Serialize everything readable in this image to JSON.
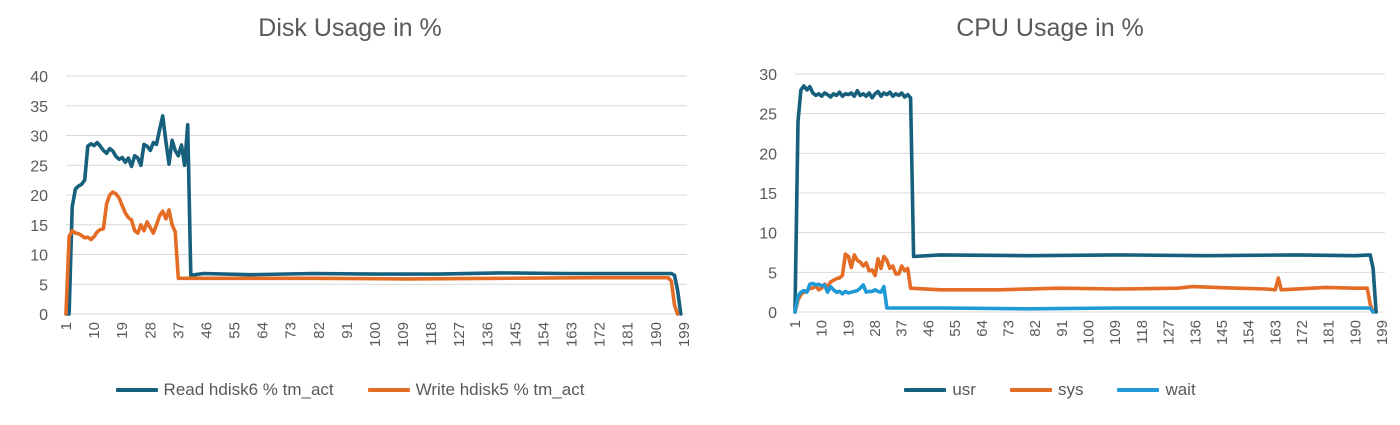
{
  "chart_data": [
    {
      "type": "line",
      "title": "Disk Usage in %",
      "xlabel": "",
      "ylabel": "",
      "ylim": [
        0,
        40
      ],
      "yticks": [
        0,
        5,
        10,
        15,
        20,
        25,
        30,
        35,
        40
      ],
      "x_tick_labels": [
        1,
        10,
        19,
        28,
        37,
        46,
        55,
        64,
        73,
        82,
        91,
        100,
        109,
        118,
        127,
        136,
        145,
        154,
        163,
        172,
        181,
        190,
        199
      ],
      "x_count": 200,
      "grid": true,
      "legend_position": "bottom",
      "series": [
        {
          "name": "Read hdisk6 % tm_act",
          "color": "#17607d",
          "points": [
            [
              1,
              0
            ],
            [
              2,
              0
            ],
            [
              3,
              18
            ],
            [
              4,
              21
            ],
            [
              5,
              21.5
            ],
            [
              6,
              21.8
            ],
            [
              7,
              22.5
            ],
            [
              8,
              28.2
            ],
            [
              9,
              28.6
            ],
            [
              10,
              28.3
            ],
            [
              11,
              28.8
            ],
            [
              12,
              28.2
            ],
            [
              13,
              27.5
            ],
            [
              14,
              27.0
            ],
            [
              15,
              27.8
            ],
            [
              16,
              27.4
            ],
            [
              17,
              26.5
            ],
            [
              18,
              26.0
            ],
            [
              19,
              26.3
            ],
            [
              20,
              25.5
            ],
            [
              21,
              26.2
            ],
            [
              22,
              24.8
            ],
            [
              23,
              26.6
            ],
            [
              24,
              26.2
            ],
            [
              25,
              25.0
            ],
            [
              26,
              28.5
            ],
            [
              27,
              28.2
            ],
            [
              28,
              27.5
            ],
            [
              29,
              28.8
            ],
            [
              30,
              28.5
            ],
            [
              31,
              31.0
            ],
            [
              32,
              33.3
            ],
            [
              33,
              29.0
            ],
            [
              34,
              25.2
            ],
            [
              35,
              29.2
            ],
            [
              36,
              27.5
            ],
            [
              37,
              26.6
            ],
            [
              38,
              28.4
            ],
            [
              39,
              25.0
            ],
            [
              40,
              31.8
            ],
            [
              41,
              6.5
            ],
            [
              45,
              6.8
            ],
            [
              60,
              6.6
            ],
            [
              80,
              6.8
            ],
            [
              100,
              6.7
            ],
            [
              120,
              6.7
            ],
            [
              140,
              6.9
            ],
            [
              160,
              6.8
            ],
            [
              180,
              6.8
            ],
            [
              195,
              6.8
            ],
            [
              196,
              6.5
            ],
            [
              197,
              4.0
            ],
            [
              198,
              0
            ]
          ]
        },
        {
          "name": "Write hdisk5 % tm_act",
          "color": "#e46c25",
          "points": [
            [
              1,
              0
            ],
            [
              2,
              13.0
            ],
            [
              3,
              14.0
            ],
            [
              4,
              13.6
            ],
            [
              5,
              13.5
            ],
            [
              6,
              13.2
            ],
            [
              7,
              12.8
            ],
            [
              8,
              12.9
            ],
            [
              9,
              12.5
            ],
            [
              10,
              13.0
            ],
            [
              11,
              13.8
            ],
            [
              12,
              14.2
            ],
            [
              13,
              14.3
            ],
            [
              14,
              18.5
            ],
            [
              15,
              20.0
            ],
            [
              16,
              20.5
            ],
            [
              17,
              20.2
            ],
            [
              18,
              19.5
            ],
            [
              19,
              18.2
            ],
            [
              20,
              17.0
            ],
            [
              21,
              16.2
            ],
            [
              22,
              15.8
            ],
            [
              23,
              14.0
            ],
            [
              24,
              13.6
            ],
            [
              25,
              15.0
            ],
            [
              26,
              14.0
            ],
            [
              27,
              15.5
            ],
            [
              28,
              14.5
            ],
            [
              29,
              13.6
            ],
            [
              30,
              15.0
            ],
            [
              31,
              16.5
            ],
            [
              32,
              17.3
            ],
            [
              33,
              16.0
            ],
            [
              34,
              17.5
            ],
            [
              35,
              15.0
            ],
            [
              36,
              13.8
            ],
            [
              37,
              6.0
            ],
            [
              50,
              6.0
            ],
            [
              80,
              6.0
            ],
            [
              110,
              5.9
            ],
            [
              140,
              6.0
            ],
            [
              170,
              6.1
            ],
            [
              194,
              6.1
            ],
            [
              195,
              5.5
            ],
            [
              196,
              1.5
            ],
            [
              197,
              0
            ]
          ]
        }
      ]
    },
    {
      "type": "line",
      "title": "CPU Usage in %",
      "xlabel": "",
      "ylabel": "",
      "ylim": [
        0,
        30
      ],
      "yticks": [
        0,
        5,
        10,
        15,
        20,
        25,
        30
      ],
      "x_tick_labels": [
        1,
        10,
        19,
        28,
        37,
        46,
        55,
        64,
        73,
        82,
        91,
        100,
        109,
        118,
        127,
        136,
        145,
        154,
        163,
        172,
        181,
        190,
        199
      ],
      "x_count": 200,
      "grid": true,
      "legend_position": "bottom",
      "series": [
        {
          "name": "usr",
          "color": "#17607d",
          "points": [
            [
              1,
              0
            ],
            [
              2,
              24
            ],
            [
              3,
              28
            ],
            [
              4,
              28.5
            ],
            [
              5,
              28.0
            ],
            [
              6,
              28.4
            ],
            [
              7,
              27.6
            ],
            [
              8,
              27.3
            ],
            [
              9,
              27.5
            ],
            [
              10,
              27.2
            ],
            [
              11,
              27.6
            ],
            [
              12,
              27.4
            ],
            [
              13,
              27.1
            ],
            [
              14,
              27.5
            ],
            [
              15,
              27.3
            ],
            [
              16,
              27.7
            ],
            [
              17,
              27.2
            ],
            [
              18,
              27.5
            ],
            [
              19,
              27.4
            ],
            [
              20,
              27.6
            ],
            [
              21,
              27.2
            ],
            [
              22,
              27.9
            ],
            [
              23,
              27.3
            ],
            [
              24,
              27.5
            ],
            [
              25,
              27.2
            ],
            [
              26,
              27.6
            ],
            [
              27,
              27.0
            ],
            [
              28,
              27.5
            ],
            [
              29,
              27.8
            ],
            [
              30,
              27.2
            ],
            [
              31,
              27.6
            ],
            [
              32,
              27.4
            ],
            [
              33,
              27.7
            ],
            [
              34,
              27.2
            ],
            [
              35,
              27.5
            ],
            [
              36,
              27.3
            ],
            [
              37,
              27.6
            ],
            [
              38,
              27.1
            ],
            [
              39,
              27.4
            ],
            [
              40,
              27.0
            ],
            [
              41,
              7.0
            ],
            [
              50,
              7.2
            ],
            [
              80,
              7.1
            ],
            [
              110,
              7.2
            ],
            [
              140,
              7.1
            ],
            [
              170,
              7.2
            ],
            [
              190,
              7.1
            ],
            [
              195,
              7.2
            ],
            [
              196,
              5.5
            ],
            [
              197,
              0
            ]
          ]
        },
        {
          "name": "sys",
          "color": "#e46c25",
          "points": [
            [
              1,
              0
            ],
            [
              2,
              1.5
            ],
            [
              3,
              2.2
            ],
            [
              4,
              2.5
            ],
            [
              5,
              2.6
            ],
            [
              6,
              3.0
            ],
            [
              7,
              3.0
            ],
            [
              8,
              3.3
            ],
            [
              9,
              2.8
            ],
            [
              10,
              3.0
            ],
            [
              11,
              3.5
            ],
            [
              12,
              3.2
            ],
            [
              13,
              3.8
            ],
            [
              14,
              4.0
            ],
            [
              15,
              4.2
            ],
            [
              16,
              4.3
            ],
            [
              17,
              4.6
            ],
            [
              18,
              7.3
            ],
            [
              19,
              7.0
            ],
            [
              20,
              5.6
            ],
            [
              21,
              7.2
            ],
            [
              22,
              6.5
            ],
            [
              23,
              6.3
            ],
            [
              24,
              5.8
            ],
            [
              25,
              6.2
            ],
            [
              26,
              5.2
            ],
            [
              27,
              5.3
            ],
            [
              28,
              4.6
            ],
            [
              29,
              6.7
            ],
            [
              30,
              5.5
            ],
            [
              31,
              7.0
            ],
            [
              32,
              6.5
            ],
            [
              33,
              5.5
            ],
            [
              34,
              5.8
            ],
            [
              35,
              4.8
            ],
            [
              36,
              4.8
            ],
            [
              37,
              5.8
            ],
            [
              38,
              5.2
            ],
            [
              39,
              5.5
            ],
            [
              40,
              3.0
            ],
            [
              50,
              2.8
            ],
            [
              70,
              2.8
            ],
            [
              90,
              3.0
            ],
            [
              110,
              2.9
            ],
            [
              130,
              3.0
            ],
            [
              135,
              3.2
            ],
            [
              150,
              3.0
            ],
            [
              160,
              2.9
            ],
            [
              163,
              2.8
            ],
            [
              164,
              4.3
            ],
            [
              165,
              2.8
            ],
            [
              180,
              3.1
            ],
            [
              190,
              3.0
            ],
            [
              194,
              3.0
            ],
            [
              195,
              1.0
            ],
            [
              196,
              0
            ]
          ]
        },
        {
          "name": "wait",
          "color": "#1f9ad6",
          "points": [
            [
              1,
              0
            ],
            [
              2,
              2.0
            ],
            [
              3,
              2.5
            ],
            [
              4,
              2.7
            ],
            [
              5,
              2.5
            ],
            [
              6,
              3.5
            ],
            [
              7,
              3.6
            ],
            [
              8,
              3.4
            ],
            [
              9,
              3.5
            ],
            [
              10,
              3.3
            ],
            [
              11,
              3.4
            ],
            [
              12,
              2.5
            ],
            [
              13,
              3.2
            ],
            [
              14,
              2.8
            ],
            [
              15,
              2.5
            ],
            [
              16,
              2.6
            ],
            [
              17,
              2.3
            ],
            [
              18,
              2.6
            ],
            [
              19,
              2.4
            ],
            [
              20,
              2.5
            ],
            [
              21,
              2.6
            ],
            [
              22,
              2.7
            ],
            [
              23,
              3.0
            ],
            [
              24,
              3.4
            ],
            [
              25,
              2.5
            ],
            [
              26,
              2.6
            ],
            [
              27,
              2.6
            ],
            [
              28,
              2.8
            ],
            [
              29,
              2.6
            ],
            [
              30,
              2.5
            ],
            [
              31,
              3.2
            ],
            [
              32,
              0.5
            ],
            [
              50,
              0.5
            ],
            [
              80,
              0.4
            ],
            [
              110,
              0.5
            ],
            [
              140,
              0.5
            ],
            [
              170,
              0.5
            ],
            [
              195,
              0.5
            ],
            [
              196,
              0
            ]
          ]
        }
      ]
    }
  ]
}
